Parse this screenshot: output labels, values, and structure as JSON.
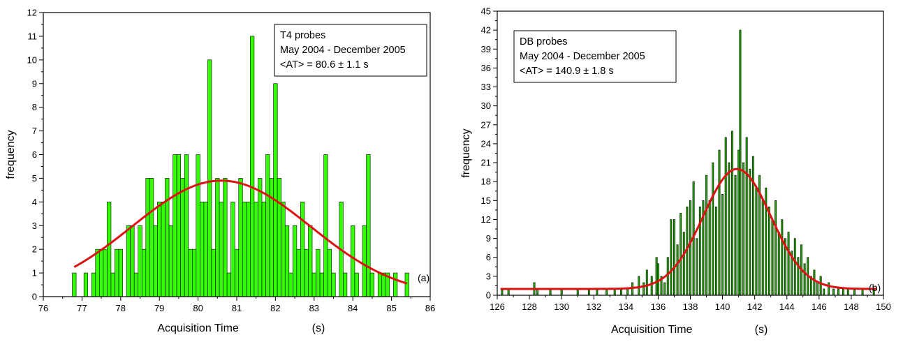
{
  "chart_data": [
    {
      "type": "bar",
      "panel_label": "(a)",
      "xlabel": "Acquisition Time",
      "xunit": "(s)",
      "ylabel": "frequency",
      "xlim": [
        76,
        86
      ],
      "ylim": [
        0,
        12
      ],
      "xticks": [
        76,
        77,
        78,
        79,
        80,
        81,
        82,
        83,
        84,
        85,
        86
      ],
      "yticks": [
        0,
        1,
        2,
        3,
        4,
        5,
        6,
        7,
        8,
        9,
        10,
        11,
        12
      ],
      "bin_width": 0.1,
      "legend": [
        "T4 probes",
        "May 2004 - December 2005",
        "<AT> = 80.6 ± 1.1 s"
      ],
      "colors": {
        "bar_fill": "#33ff00",
        "bar_stroke": "#000000",
        "fit": "#dd1111"
      },
      "bins": [
        {
          "x": 76.8,
          "y": 1
        },
        {
          "x": 77.1,
          "y": 1
        },
        {
          "x": 77.3,
          "y": 1
        },
        {
          "x": 77.4,
          "y": 2
        },
        {
          "x": 77.5,
          "y": 2
        },
        {
          "x": 77.6,
          "y": 2
        },
        {
          "x": 77.7,
          "y": 4
        },
        {
          "x": 77.8,
          "y": 1
        },
        {
          "x": 77.9,
          "y": 2
        },
        {
          "x": 78.0,
          "y": 2
        },
        {
          "x": 78.2,
          "y": 3
        },
        {
          "x": 78.3,
          "y": 3
        },
        {
          "x": 78.4,
          "y": 1
        },
        {
          "x": 78.5,
          "y": 3
        },
        {
          "x": 78.6,
          "y": 2
        },
        {
          "x": 78.7,
          "y": 5
        },
        {
          "x": 78.8,
          "y": 5
        },
        {
          "x": 78.9,
          "y": 3
        },
        {
          "x": 79.0,
          "y": 4
        },
        {
          "x": 79.1,
          "y": 4
        },
        {
          "x": 79.2,
          "y": 5
        },
        {
          "x": 79.3,
          "y": 3
        },
        {
          "x": 79.4,
          "y": 6
        },
        {
          "x": 79.5,
          "y": 6
        },
        {
          "x": 79.6,
          "y": 5
        },
        {
          "x": 79.7,
          "y": 6
        },
        {
          "x": 79.8,
          "y": 2
        },
        {
          "x": 79.9,
          "y": 2
        },
        {
          "x": 80.0,
          "y": 6
        },
        {
          "x": 80.1,
          "y": 4
        },
        {
          "x": 80.2,
          "y": 4
        },
        {
          "x": 80.3,
          "y": 10
        },
        {
          "x": 80.4,
          "y": 2
        },
        {
          "x": 80.5,
          "y": 5
        },
        {
          "x": 80.6,
          "y": 4
        },
        {
          "x": 80.7,
          "y": 5
        },
        {
          "x": 80.8,
          "y": 1
        },
        {
          "x": 80.9,
          "y": 4
        },
        {
          "x": 81.0,
          "y": 2
        },
        {
          "x": 81.1,
          "y": 5
        },
        {
          "x": 81.2,
          "y": 4
        },
        {
          "x": 81.3,
          "y": 4
        },
        {
          "x": 81.4,
          "y": 11
        },
        {
          "x": 81.5,
          "y": 4
        },
        {
          "x": 81.6,
          "y": 5
        },
        {
          "x": 81.7,
          "y": 4
        },
        {
          "x": 81.8,
          "y": 6
        },
        {
          "x": 81.9,
          "y": 5
        },
        {
          "x": 82.0,
          "y": 9
        },
        {
          "x": 82.1,
          "y": 5
        },
        {
          "x": 82.2,
          "y": 4
        },
        {
          "x": 82.3,
          "y": 3
        },
        {
          "x": 82.4,
          "y": 1
        },
        {
          "x": 82.5,
          "y": 3
        },
        {
          "x": 82.6,
          "y": 2
        },
        {
          "x": 82.7,
          "y": 4
        },
        {
          "x": 82.8,
          "y": 2
        },
        {
          "x": 82.9,
          "y": 3
        },
        {
          "x": 83.0,
          "y": 1
        },
        {
          "x": 83.1,
          "y": 2
        },
        {
          "x": 83.2,
          "y": 1
        },
        {
          "x": 83.3,
          "y": 6
        },
        {
          "x": 83.4,
          "y": 2
        },
        {
          "x": 83.5,
          "y": 1
        },
        {
          "x": 83.7,
          "y": 4
        },
        {
          "x": 83.8,
          "y": 1
        },
        {
          "x": 84.0,
          "y": 3
        },
        {
          "x": 84.1,
          "y": 1
        },
        {
          "x": 84.3,
          "y": 3
        },
        {
          "x": 84.4,
          "y": 6
        },
        {
          "x": 84.5,
          "y": 1
        },
        {
          "x": 84.7,
          "y": 1
        },
        {
          "x": 84.8,
          "y": 1
        },
        {
          "x": 84.9,
          "y": 1
        },
        {
          "x": 85.1,
          "y": 1
        },
        {
          "x": 85.4,
          "y": 1
        }
      ],
      "fit": {
        "mean": 80.6,
        "sigma": 2.3,
        "amplitude": 4.9,
        "x_range": [
          76.8,
          85.4
        ]
      }
    },
    {
      "type": "bar",
      "panel_label": "(b)",
      "xlabel": "Acquisition Time",
      "xunit": "(s)",
      "ylabel": "frequency",
      "xlim": [
        126,
        150
      ],
      "ylim": [
        0,
        45
      ],
      "xticks": [
        126,
        128,
        130,
        132,
        134,
        136,
        138,
        140,
        142,
        144,
        146,
        148,
        150
      ],
      "yticks": [
        0,
        3,
        6,
        9,
        12,
        15,
        18,
        21,
        24,
        27,
        30,
        33,
        36,
        39,
        42,
        45
      ],
      "bin_width": 0.1,
      "legend": [
        "DB probes",
        "May 2004 - December 2005",
        "<AT> = 140.9 ± 1.8 s"
      ],
      "colors": {
        "bar_fill": "#22aa00",
        "bar_stroke": "#000000",
        "fit": "#dd1111"
      },
      "bins": [
        {
          "x": 126.3,
          "y": 1
        },
        {
          "x": 126.7,
          "y": 1
        },
        {
          "x": 128.3,
          "y": 2
        },
        {
          "x": 128.5,
          "y": 1
        },
        {
          "x": 129.3,
          "y": 1
        },
        {
          "x": 130.0,
          "y": 1
        },
        {
          "x": 131.0,
          "y": 1
        },
        {
          "x": 131.7,
          "y": 1
        },
        {
          "x": 132.2,
          "y": 1
        },
        {
          "x": 132.8,
          "y": 1
        },
        {
          "x": 133.3,
          "y": 1
        },
        {
          "x": 133.7,
          "y": 1
        },
        {
          "x": 134.1,
          "y": 1
        },
        {
          "x": 134.4,
          "y": 2
        },
        {
          "x": 134.8,
          "y": 3
        },
        {
          "x": 135.1,
          "y": 2
        },
        {
          "x": 135.3,
          "y": 4
        },
        {
          "x": 135.6,
          "y": 3
        },
        {
          "x": 135.9,
          "y": 6
        },
        {
          "x": 136.0,
          "y": 5
        },
        {
          "x": 136.2,
          "y": 3
        },
        {
          "x": 136.4,
          "y": 2
        },
        {
          "x": 136.6,
          "y": 6
        },
        {
          "x": 136.8,
          "y": 12
        },
        {
          "x": 137.0,
          "y": 12
        },
        {
          "x": 137.2,
          "y": 8
        },
        {
          "x": 137.4,
          "y": 13
        },
        {
          "x": 137.6,
          "y": 10
        },
        {
          "x": 137.8,
          "y": 14
        },
        {
          "x": 138.0,
          "y": 15
        },
        {
          "x": 138.2,
          "y": 18
        },
        {
          "x": 138.4,
          "y": 9
        },
        {
          "x": 138.6,
          "y": 14
        },
        {
          "x": 138.8,
          "y": 15
        },
        {
          "x": 139.0,
          "y": 19
        },
        {
          "x": 139.2,
          "y": 15
        },
        {
          "x": 139.4,
          "y": 21
        },
        {
          "x": 139.6,
          "y": 14
        },
        {
          "x": 139.8,
          "y": 23
        },
        {
          "x": 140.0,
          "y": 16
        },
        {
          "x": 140.2,
          "y": 25
        },
        {
          "x": 140.4,
          "y": 21
        },
        {
          "x": 140.6,
          "y": 26
        },
        {
          "x": 140.8,
          "y": 19
        },
        {
          "x": 141.0,
          "y": 23
        },
        {
          "x": 141.1,
          "y": 42
        },
        {
          "x": 141.3,
          "y": 21
        },
        {
          "x": 141.5,
          "y": 25
        },
        {
          "x": 141.7,
          "y": 20
        },
        {
          "x": 141.9,
          "y": 22
        },
        {
          "x": 142.1,
          "y": 17
        },
        {
          "x": 142.3,
          "y": 19
        },
        {
          "x": 142.5,
          "y": 15
        },
        {
          "x": 142.7,
          "y": 17
        },
        {
          "x": 142.9,
          "y": 14
        },
        {
          "x": 143.1,
          "y": 12
        },
        {
          "x": 143.3,
          "y": 15
        },
        {
          "x": 143.5,
          "y": 10
        },
        {
          "x": 143.7,
          "y": 12
        },
        {
          "x": 143.9,
          "y": 9
        },
        {
          "x": 144.1,
          "y": 10
        },
        {
          "x": 144.3,
          "y": 7
        },
        {
          "x": 144.5,
          "y": 9
        },
        {
          "x": 144.7,
          "y": 6
        },
        {
          "x": 144.9,
          "y": 8
        },
        {
          "x": 145.1,
          "y": 5
        },
        {
          "x": 145.3,
          "y": 6
        },
        {
          "x": 145.5,
          "y": 3
        },
        {
          "x": 145.7,
          "y": 4
        },
        {
          "x": 145.9,
          "y": 2
        },
        {
          "x": 146.1,
          "y": 3
        },
        {
          "x": 146.3,
          "y": 1
        },
        {
          "x": 146.6,
          "y": 2
        },
        {
          "x": 146.9,
          "y": 1
        },
        {
          "x": 147.2,
          "y": 1
        },
        {
          "x": 147.5,
          "y": 1
        },
        {
          "x": 147.8,
          "y": 1
        },
        {
          "x": 148.2,
          "y": 1
        },
        {
          "x": 148.7,
          "y": 1
        },
        {
          "x": 149.4,
          "y": 1
        }
      ],
      "fit": {
        "mean": 140.9,
        "sigma": 2.1,
        "amplitude": 19,
        "baseline": 1,
        "x_range": [
          126.2,
          149.6
        ]
      }
    }
  ]
}
